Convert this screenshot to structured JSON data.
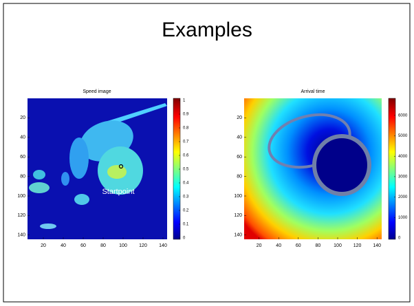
{
  "title": "Examples",
  "panels": [
    {
      "title": "Speed image",
      "xticks": [
        20,
        40,
        60,
        80,
        100,
        120,
        140
      ],
      "yticks": [
        20,
        40,
        60,
        80,
        100,
        120,
        140
      ],
      "colorbar_ticks": [
        0,
        0.1,
        0.2,
        0.3,
        0.4,
        0.5,
        0.6,
        0.7,
        0.8,
        0.9,
        1
      ],
      "annotation": "Startpoint"
    },
    {
      "title": "Arrival time",
      "xticks": [
        20,
        40,
        60,
        80,
        100,
        120,
        140
      ],
      "yticks": [
        20,
        40,
        60,
        80,
        100,
        120,
        140
      ],
      "colorbar_ticks": [
        0,
        1000,
        2000,
        3000,
        4000,
        5000,
        6000
      ]
    }
  ]
}
